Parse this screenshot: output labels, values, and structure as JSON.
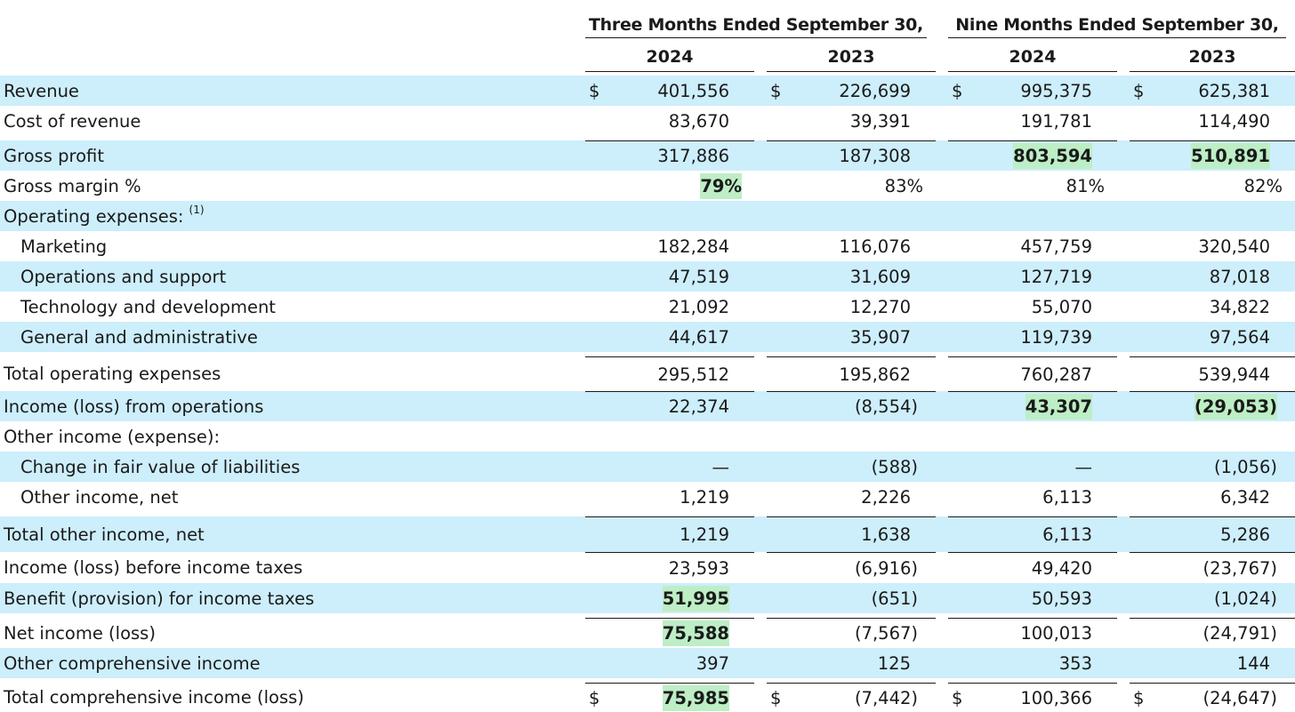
{
  "header": {
    "periods": [
      "Three Months Ended September 30,",
      "Nine Months Ended September 30,"
    ],
    "years": [
      "2024",
      "2023",
      "2024",
      "2023"
    ]
  },
  "currency_symbol": "$",
  "highlight_color": "#bdeec6",
  "row_shading_color": "#cdeefb",
  "rows": [
    {
      "label": "Revenue",
      "values": [
        "401,556",
        "226,699",
        "995,375",
        "625,381"
      ],
      "currency": true,
      "shaded": true
    },
    {
      "label": "Cost of revenue",
      "values": [
        "83,670",
        "39,391",
        "191,781",
        "114,490"
      ]
    },
    {
      "label": "Gross profit",
      "values": [
        "317,886",
        "187,308",
        "803,594",
        "510,891"
      ],
      "shaded": true,
      "rule_above": true,
      "highlight": [
        2,
        3
      ]
    },
    {
      "label": "Gross margin %",
      "values": [
        "79%",
        "83%",
        "81%",
        "82%"
      ],
      "pct": true,
      "highlight": [
        0
      ]
    },
    {
      "label": "Operating expenses:",
      "footnote": "(1)",
      "values": [
        "",
        "",
        "",
        ""
      ],
      "shaded": true
    },
    {
      "label": "Marketing",
      "indent": true,
      "values": [
        "182,284",
        "116,076",
        "457,759",
        "320,540"
      ]
    },
    {
      "label": "Operations and support",
      "indent": true,
      "values": [
        "47,519",
        "31,609",
        "127,719",
        "87,018"
      ],
      "shaded": true
    },
    {
      "label": "Technology and development",
      "indent": true,
      "values": [
        "21,092",
        "12,270",
        "55,070",
        "34,822"
      ]
    },
    {
      "label": "General and administrative",
      "indent": true,
      "values": [
        "44,617",
        "35,907",
        "119,739",
        "97,564"
      ],
      "shaded": true
    },
    {
      "label": "Total operating expenses",
      "values": [
        "295,512",
        "195,862",
        "760,287",
        "539,944"
      ],
      "rule_above": true
    },
    {
      "label": "Income (loss) from operations",
      "values": [
        "22,374",
        "(8,554)",
        "43,307",
        "(29,053)"
      ],
      "shaded": true,
      "rule_above": true,
      "highlight": [
        2,
        3
      ]
    },
    {
      "label": "Other income (expense):",
      "values": [
        "",
        "",
        "",
        ""
      ]
    },
    {
      "label": "Change in fair value of liabilities",
      "indent": true,
      "values": [
        "—",
        "(588)",
        "—",
        "(1,056)"
      ],
      "shaded": true
    },
    {
      "label": "Other income, net",
      "indent": true,
      "values": [
        "1,219",
        "2,226",
        "6,113",
        "6,342"
      ]
    },
    {
      "label": "Total other income, net",
      "values": [
        "1,219",
        "1,638",
        "6,113",
        "5,286"
      ],
      "shaded": true,
      "rule_above": true
    },
    {
      "label": "Income (loss) before income taxes",
      "values": [
        "23,593",
        "(6,916)",
        "49,420",
        "(23,767)"
      ],
      "rule_above": true
    },
    {
      "label": "Benefit (provision) for income taxes",
      "values": [
        "51,995",
        "(651)",
        "50,593",
        "(1,024)"
      ],
      "shaded": true,
      "highlight": [
        0
      ]
    },
    {
      "label": "Net income (loss)",
      "values": [
        "75,588",
        "(7,567)",
        "100,013",
        "(24,791)"
      ],
      "rule_above": true,
      "highlight": [
        0
      ]
    },
    {
      "label": "Other comprehensive income",
      "values": [
        "397",
        "125",
        "353",
        "144"
      ],
      "shaded": true
    },
    {
      "label": "Total comprehensive income (loss)",
      "values": [
        "75,985",
        "(7,442)",
        "100,366",
        "(24,647)"
      ],
      "currency": true,
      "rule_above": true,
      "highlight": [
        0
      ]
    }
  ]
}
